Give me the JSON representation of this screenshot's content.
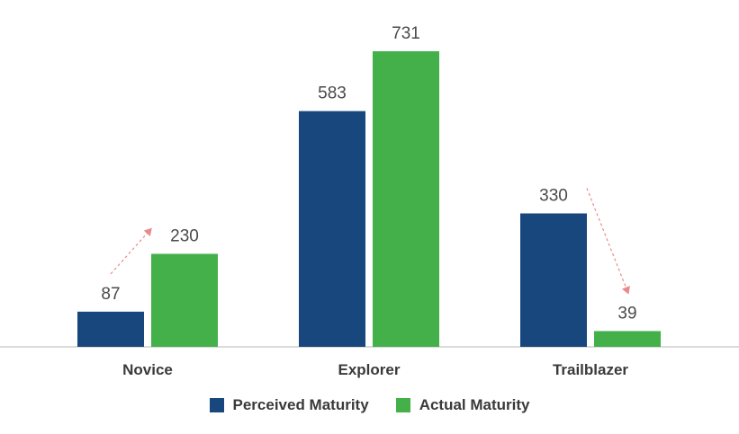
{
  "chart_data": {
    "type": "bar",
    "categories": [
      "Novice",
      "Explorer",
      "Trailblazer"
    ],
    "series": [
      {
        "name": "Perceived Maturity",
        "values": [
          87,
          583,
          330
        ],
        "color": "#17477d"
      },
      {
        "name": "Actual Maturity",
        "values": [
          230,
          731,
          39
        ],
        "color": "#43b04a"
      }
    ],
    "ylim": [
      0,
      800
    ],
    "grid": false,
    "legend_placement": "bottom",
    "annotations": [
      {
        "type": "dashed-arrow",
        "category": "Novice",
        "direction": "up",
        "color": "#e88a8a"
      },
      {
        "type": "dashed-arrow",
        "category": "Trailblazer",
        "direction": "down",
        "color": "#e88a8a"
      }
    ]
  }
}
